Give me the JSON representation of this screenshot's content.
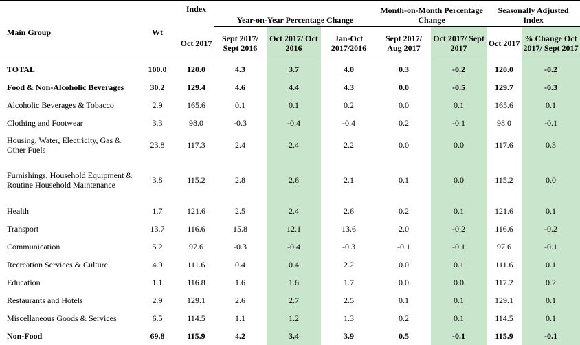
{
  "headers": {
    "main_group": "Main Group",
    "wt": "Wt",
    "index_group": "Index",
    "yoy_group": "Year-on-Year Percentage Change",
    "mom_group": "Month-on-Month Percentage Change",
    "sa_group": "Seasonally Adjusted Index",
    "cols": [
      "Oct 2017",
      "Sept 2017/ Sept 2016",
      "Oct 2017/ Oct 2016",
      "Jan-Oct 2017/2016",
      "Sept 2017/ Aug 2017",
      "Oct 2017/ Sept 2017",
      "Oct 2017",
      "% Change Oct 2017/ Sept 2017"
    ]
  },
  "rows": [
    {
      "label": "TOTAL",
      "wt": "100.0",
      "v": [
        "120.0",
        "4.3",
        "3.7",
        "4.0",
        "0.3",
        "-0.2",
        "120.0",
        "-0.2"
      ],
      "bold": true
    },
    {
      "label": "Food & Non-Alcoholic Beverages",
      "wt": "30.2",
      "v": [
        "129.4",
        "4.6",
        "4.4",
        "4.3",
        "0.0",
        "-0.5",
        "129.7",
        "-0.3"
      ],
      "bold": true
    },
    {
      "label": "Alcoholic Beverages & Tobacco",
      "wt": "2.9",
      "v": [
        "165.6",
        "0.1",
        "0.1",
        "0.2",
        "0.0",
        "0.1",
        "165.6",
        "0.1"
      ]
    },
    {
      "label": "Clothing and Footwear",
      "wt": "3.3",
      "v": [
        "98.0",
        "-0.3",
        "-0.4",
        "-0.4",
        "0.2",
        "-0.1",
        "98.0",
        "-0.1"
      ]
    },
    {
      "label": "Housing, Water, Electricity, Gas & Other Fuels",
      "wt": "23.8",
      "v": [
        "117.3",
        "2.4",
        "2.4",
        "2.2",
        "0.0",
        "0.0",
        "117.6",
        "0.3"
      ],
      "tall": 2
    },
    {
      "label": "Furnishings, Household Equipment & Routine Household Maintenance",
      "wt": "3.8",
      "v": [
        "115.2",
        "2.8",
        "2.6",
        "2.1",
        "0.1",
        "0.0",
        "115.2",
        "0.0"
      ],
      "tall": 3
    },
    {
      "label": "Health",
      "wt": "1.7",
      "v": [
        "121.6",
        "2.5",
        "2.4",
        "2.6",
        "0.2",
        "0.1",
        "121.6",
        "0.1"
      ]
    },
    {
      "label": "Transport",
      "wt": "13.7",
      "v": [
        "116.6",
        "15.8",
        "12.1",
        "13.6",
        "2.0",
        "-0.2",
        "116.6",
        "-0.2"
      ]
    },
    {
      "label": "Communication",
      "wt": "5.2",
      "v": [
        "97.6",
        "-0.3",
        "-0.4",
        "-0.3",
        "-0.1",
        "-0.1",
        "97.6",
        "-0.1"
      ]
    },
    {
      "label": "Recreation Services & Culture",
      "wt": "4.9",
      "v": [
        "111.6",
        "0.4",
        "0.4",
        "2.2",
        "0.0",
        "0.1",
        "111.6",
        "0.1"
      ]
    },
    {
      "label": "Education",
      "wt": "1.1",
      "v": [
        "116.8",
        "1.6",
        "1.6",
        "1.7",
        "0.0",
        "0.0",
        "117.2",
        "0.2"
      ]
    },
    {
      "label": "Restaurants and Hotels",
      "wt": "2.9",
      "v": [
        "129.1",
        "2.6",
        "2.7",
        "2.5",
        "0.1",
        "0.1",
        "129.1",
        "0.1"
      ]
    },
    {
      "label": "Miscellaneous Goods & Services",
      "wt": "6.5",
      "v": [
        "114.5",
        "1.1",
        "1.2",
        "1.3",
        "0.2",
        "0.1",
        "114.5",
        "0.1"
      ]
    },
    {
      "label": "Non-Food",
      "wt": "69.8",
      "v": [
        "115.9",
        "4.2",
        "3.4",
        "3.9",
        "0.5",
        "-0.1",
        "115.9",
        "-0.1"
      ],
      "bold": true
    }
  ],
  "colors": {
    "highlight": "#c9e6cc"
  }
}
